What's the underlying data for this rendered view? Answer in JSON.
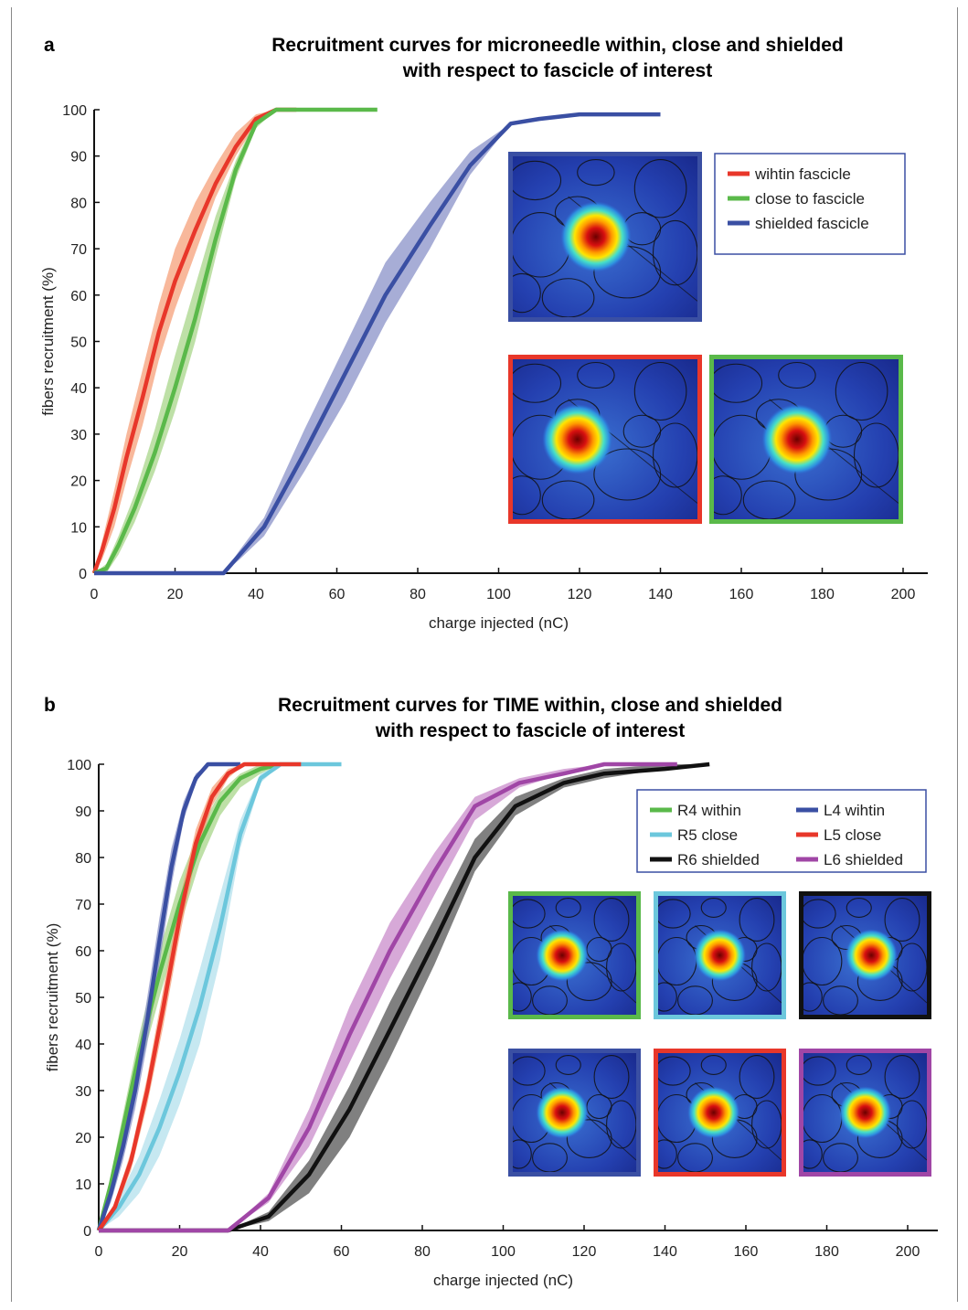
{
  "chart_data": [
    {
      "panel": "a",
      "type": "line",
      "title_lines": [
        "Recruitment curves for microneedle within, close and shielded",
        "with respect to fascicle of interest"
      ],
      "xlabel": "charge injected (nC)",
      "ylabel": "fibers recruitment (%)",
      "xlim": [
        0,
        200
      ],
      "ylim": [
        0,
        100
      ],
      "xticks": [
        0,
        20,
        40,
        60,
        80,
        100,
        120,
        140,
        160,
        180,
        200
      ],
      "yticks": [
        0,
        10,
        20,
        30,
        40,
        50,
        60,
        70,
        80,
        90,
        100
      ],
      "grid": false,
      "legend_position": "top-right",
      "series": [
        {
          "name": "wihtin fascicle",
          "color": "#e8372a",
          "band": "#f5a07a",
          "x": [
            0,
            2,
            5,
            8,
            12,
            16,
            20,
            25,
            30,
            35,
            40,
            45,
            50
          ],
          "y": [
            0,
            5,
            14,
            25,
            38,
            52,
            63,
            74,
            84,
            92,
            98,
            100,
            100
          ],
          "lo": [
            0,
            3,
            10,
            20,
            32,
            46,
            57,
            69,
            81,
            90,
            97,
            100,
            100
          ],
          "hi": [
            0,
            7,
            18,
            30,
            44,
            58,
            70,
            80,
            88,
            95,
            99,
            100,
            100
          ]
        },
        {
          "name": "close to fascicle",
          "color": "#5ab94a",
          "band": "#a8d68a",
          "x": [
            0,
            3,
            6,
            10,
            15,
            20,
            25,
            30,
            35,
            40,
            45,
            50,
            60,
            70
          ],
          "y": [
            0,
            1,
            6,
            14,
            26,
            40,
            55,
            72,
            87,
            97,
            100,
            100,
            100,
            100
          ],
          "lo": [
            0,
            0,
            4,
            11,
            22,
            35,
            50,
            68,
            85,
            96,
            100,
            100,
            100,
            100
          ],
          "hi": [
            0,
            2,
            8,
            17,
            31,
            47,
            62,
            77,
            89,
            98,
            100,
            100,
            100,
            100
          ]
        },
        {
          "name": "shielded fascicle",
          "color": "#3a4fa3",
          "band": "#8a91c8",
          "x": [
            0,
            32,
            36,
            42,
            52,
            62,
            72,
            83,
            93,
            103,
            110,
            120,
            130,
            140
          ],
          "y": [
            0,
            0,
            4,
            10,
            26,
            43,
            60,
            75,
            88,
            97,
            98,
            99,
            99,
            99
          ],
          "lo": [
            0,
            0,
            3,
            8,
            22,
            37,
            54,
            70,
            86,
            97,
            98,
            99,
            99,
            99
          ],
          "hi": [
            0,
            0,
            5,
            12,
            31,
            49,
            67,
            80,
            91,
            97,
            98,
            99,
            99,
            99
          ]
        }
      ]
    },
    {
      "panel": "b",
      "type": "line",
      "title_lines": [
        "Recruitment curves for TIME within, close and shielded",
        "with respect to fascicle of interest"
      ],
      "xlabel": "charge injected (nC)",
      "ylabel": "fibers recruitment (%)",
      "xlim": [
        0,
        200
      ],
      "ylim": [
        0,
        100
      ],
      "xticks": [
        0,
        20,
        40,
        60,
        80,
        100,
        120,
        140,
        160,
        180,
        200
      ],
      "yticks": [
        0,
        10,
        20,
        30,
        40,
        50,
        60,
        70,
        80,
        90,
        100
      ],
      "grid": false,
      "legend_position": "top-right",
      "series": [
        {
          "name": "R4 within",
          "color": "#5ab94a",
          "band": "#a8d68a",
          "x": [
            0,
            3,
            6,
            10,
            15,
            20,
            25,
            30,
            35,
            40,
            45
          ],
          "y": [
            0,
            10,
            22,
            38,
            55,
            70,
            83,
            92,
            97,
            99,
            100
          ],
          "lo": [
            0,
            8,
            19,
            34,
            50,
            65,
            79,
            89,
            95,
            98,
            100
          ],
          "hi": [
            0,
            12,
            25,
            42,
            60,
            75,
            86,
            94,
            98,
            100,
            100
          ]
        },
        {
          "name": "L4 wihtin",
          "color": "#3a4fa3",
          "band": "#8a91c8",
          "x": [
            0,
            3,
            6,
            9,
            12,
            15,
            18,
            21,
            24,
            27,
            30,
            35
          ],
          "y": [
            0,
            8,
            18,
            30,
            45,
            62,
            78,
            90,
            97,
            100,
            100,
            100
          ],
          "lo": [
            0,
            6,
            15,
            26,
            40,
            57,
            74,
            88,
            96,
            100,
            100,
            100
          ],
          "hi": [
            0,
            10,
            21,
            34,
            50,
            67,
            82,
            92,
            98,
            100,
            100,
            100
          ]
        },
        {
          "name": "R5 close",
          "color": "#6cc7dc",
          "band": "#b3e0ec",
          "x": [
            0,
            5,
            10,
            15,
            20,
            25,
            30,
            35,
            40,
            45,
            50,
            55,
            60
          ],
          "y": [
            0,
            5,
            12,
            22,
            34,
            48,
            65,
            85,
            97,
            100,
            100,
            100,
            100
          ],
          "lo": [
            0,
            3,
            8,
            16,
            27,
            40,
            58,
            82,
            96,
            100,
            100,
            100,
            100
          ],
          "hi": [
            0,
            7,
            16,
            28,
            41,
            56,
            72,
            88,
            98,
            100,
            100,
            100,
            100
          ]
        },
        {
          "name": "L5 close",
          "color": "#e8372a",
          "band": "#f5a07a",
          "x": [
            0,
            4,
            8,
            12,
            16,
            20,
            24,
            28,
            32,
            36,
            40,
            45,
            50
          ],
          "y": [
            0,
            5,
            15,
            30,
            48,
            67,
            83,
            93,
            98,
            100,
            100,
            100,
            100
          ],
          "lo": [
            0,
            4,
            13,
            27,
            44,
            63,
            80,
            91,
            97,
            100,
            100,
            100,
            100
          ],
          "hi": [
            0,
            6,
            17,
            33,
            52,
            71,
            86,
            95,
            99,
            100,
            100,
            100,
            100
          ]
        },
        {
          "name": "R6 shielded",
          "color": "#111111",
          "band": "#555555",
          "x": [
            0,
            32,
            42,
            52,
            62,
            72,
            83,
            93,
            103,
            115,
            125,
            140,
            151
          ],
          "y": [
            0,
            0,
            3,
            12,
            26,
            43,
            62,
            80,
            91,
            96,
            98,
            99,
            100
          ],
          "lo": [
            0,
            0,
            2,
            8,
            20,
            37,
            57,
            77,
            89,
            95,
            97,
            99,
            100
          ],
          "hi": [
            0,
            0,
            4,
            15,
            31,
            49,
            67,
            84,
            93,
            97,
            99,
            100,
            100
          ]
        },
        {
          "name": "L6 shielded",
          "color": "#a046a6",
          "band": "#c98ccb",
          "x": [
            0,
            32,
            42,
            52,
            62,
            72,
            83,
            93,
            104,
            115,
            125,
            135,
            143
          ],
          "y": [
            0,
            0,
            7,
            22,
            42,
            60,
            77,
            91,
            96,
            98,
            100,
            100,
            100
          ],
          "lo": [
            0,
            0,
            6,
            18,
            36,
            54,
            72,
            88,
            95,
            98,
            100,
            100,
            100
          ],
          "hi": [
            0,
            0,
            8,
            26,
            48,
            66,
            81,
            93,
            97,
            99,
            100,
            100,
            100
          ]
        }
      ]
    }
  ],
  "panel_letters": [
    "a",
    "b"
  ],
  "insets": {
    "a": [
      {
        "frame": "#3a4fa3",
        "hot": 0.45
      },
      {
        "frame": "#e8372a",
        "hot": 0.35
      },
      {
        "frame": "#5ab94a",
        "hot": 0.45
      }
    ],
    "b": [
      {
        "frame": "#5ab94a",
        "hot": 0.4
      },
      {
        "frame": "#6cc7dc",
        "hot": 0.5
      },
      {
        "frame": "#111111",
        "hot": 0.55
      },
      {
        "frame": "#3a4fa3",
        "hot": 0.4
      },
      {
        "frame": "#e8372a",
        "hot": 0.45
      },
      {
        "frame": "#a046a6",
        "hot": 0.5
      }
    ]
  }
}
